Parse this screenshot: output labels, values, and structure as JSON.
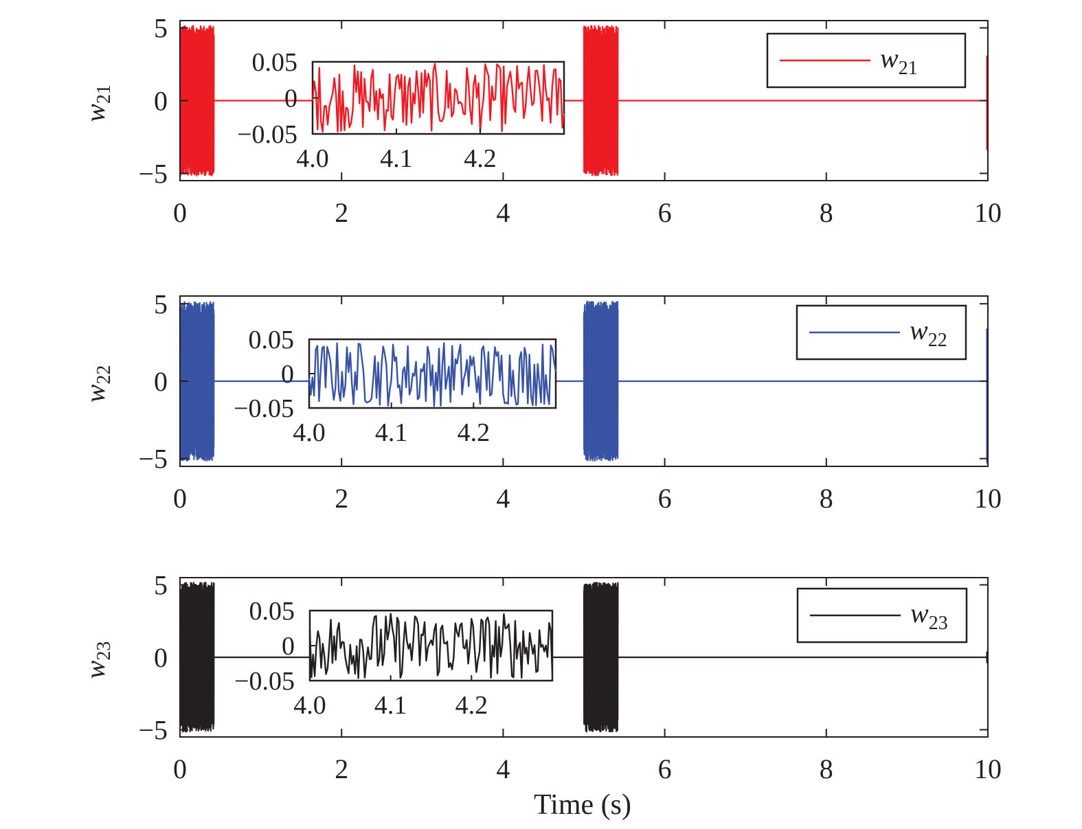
{
  "chart_data": [
    {
      "type": "line",
      "xlabel": "",
      "ylabel": {
        "base": "w",
        "sub": "21"
      },
      "xlim": [
        0,
        10
      ],
      "ylim": [
        -5.5,
        5.5
      ],
      "x_ticks": [
        "0",
        "2",
        "4",
        "6",
        "8",
        "10"
      ],
      "y_ticks": [
        "5",
        "0",
        "−5"
      ],
      "legend": {
        "position": "top-right"
      },
      "series": [
        {
          "name": {
            "base": "w",
            "sub": "21"
          },
          "color": "#ed1c24",
          "segments": [
            {
              "x": [
                0,
                0.42
              ],
              "pattern": "oscillation",
              "amplitude": 5.2
            },
            {
              "x": [
                0.42,
                5.0
              ],
              "pattern": "flat",
              "value": 0
            },
            {
              "x": [
                5.0,
                5.42
              ],
              "pattern": "oscillation",
              "amplitude": 5.2
            },
            {
              "x": [
                5.42,
                10.0
              ],
              "pattern": "flat",
              "value": 0
            }
          ],
          "end_spike": {
            "x": 10.0,
            "range": [
              -3.4,
              3.1
            ]
          }
        }
      ],
      "inset": {
        "xlim": [
          4.0,
          4.3
        ],
        "ylim": [
          -0.05,
          0.05
        ],
        "x_ticks": [
          "4.0",
          "4.1",
          "4.2"
        ],
        "y_ticks": [
          "0.05",
          "0",
          "−0.05"
        ],
        "pattern": "noise",
        "amplitude": 0.05
      }
    },
    {
      "type": "line",
      "xlabel": "",
      "ylabel": {
        "base": "w",
        "sub": "22"
      },
      "xlim": [
        0,
        10
      ],
      "ylim": [
        -5.5,
        5.5
      ],
      "x_ticks": [
        "0",
        "2",
        "4",
        "6",
        "8",
        "10"
      ],
      "y_ticks": [
        "5",
        "0",
        "−5"
      ],
      "legend": {
        "position": "top-right"
      },
      "series": [
        {
          "name": {
            "base": "w",
            "sub": "22"
          },
          "color": "#3953a4",
          "segments": [
            {
              "x": [
                0,
                0.42
              ],
              "pattern": "oscillation",
              "amplitude": 5.2
            },
            {
              "x": [
                0.42,
                5.0
              ],
              "pattern": "flat",
              "value": 0
            },
            {
              "x": [
                5.0,
                5.42
              ],
              "pattern": "oscillation",
              "amplitude": 5.2
            },
            {
              "x": [
                5.42,
                10.0
              ],
              "pattern": "flat",
              "value": 0
            }
          ],
          "end_spike": {
            "x": 10.0,
            "range": [
              -5.3,
              3.4
            ]
          }
        }
      ],
      "inset": {
        "xlim": [
          4.0,
          4.3
        ],
        "ylim": [
          -0.05,
          0.05
        ],
        "x_ticks": [
          "4.0",
          "4.1",
          "4.2"
        ],
        "y_ticks": [
          "0.05",
          "0",
          "−0.05"
        ],
        "pattern": "noise",
        "amplitude": 0.05
      }
    },
    {
      "type": "line",
      "xlabel": "Time (s)",
      "ylabel": {
        "base": "w",
        "sub": "23"
      },
      "xlim": [
        0,
        10
      ],
      "ylim": [
        -5.5,
        5.5
      ],
      "x_ticks": [
        "0",
        "2",
        "4",
        "6",
        "8",
        "10"
      ],
      "y_ticks": [
        "5",
        "0",
        "−5"
      ],
      "legend": {
        "position": "top-right"
      },
      "series": [
        {
          "name": {
            "base": "w",
            "sub": "23"
          },
          "color": "#231f20",
          "segments": [
            {
              "x": [
                0,
                0.42
              ],
              "pattern": "oscillation",
              "amplitude": 5.2
            },
            {
              "x": [
                0.42,
                5.0
              ],
              "pattern": "flat",
              "value": 0
            },
            {
              "x": [
                5.0,
                5.42
              ],
              "pattern": "oscillation",
              "amplitude": 5.2
            },
            {
              "x": [
                5.42,
                10.0
              ],
              "pattern": "flat",
              "value": 0
            }
          ],
          "end_spike": {
            "x": 10.0,
            "range": [
              -0.4,
              0.4
            ]
          }
        }
      ],
      "inset": {
        "xlim": [
          4.0,
          4.3
        ],
        "ylim": [
          -0.05,
          0.05
        ],
        "x_ticks": [
          "4.0",
          "4.1",
          "4.2"
        ],
        "y_ticks": [
          "0.05",
          "0",
          "−0.05"
        ],
        "pattern": "noise",
        "amplitude": 0.05
      }
    }
  ]
}
